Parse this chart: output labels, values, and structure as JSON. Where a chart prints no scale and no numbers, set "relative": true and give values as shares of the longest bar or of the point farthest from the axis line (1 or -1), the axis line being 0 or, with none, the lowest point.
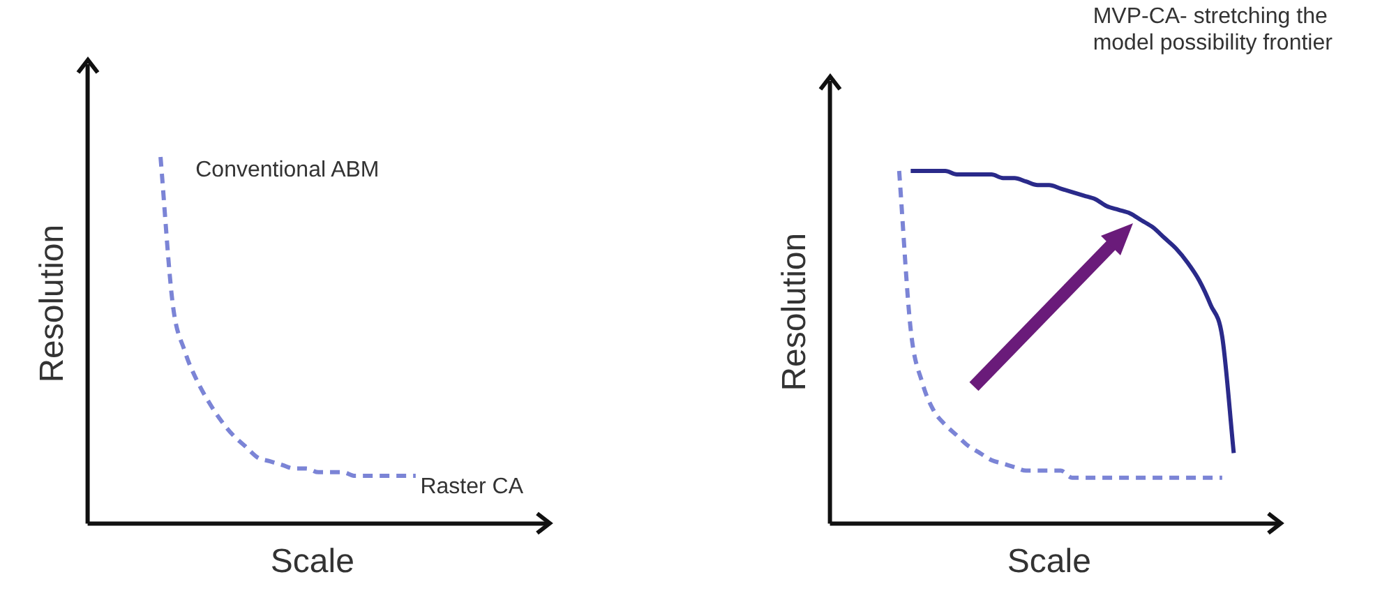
{
  "chart_data": [
    {
      "type": "line",
      "relative": true,
      "tick_labels": false,
      "marker": "none",
      "xlabel": "Scale",
      "ylabel": "Resolution",
      "categories": [
        null,
        null,
        null,
        null,
        null,
        null,
        null,
        null,
        null,
        null,
        null,
        null,
        null,
        null,
        null,
        null,
        null,
        null,
        null,
        null,
        null,
        null,
        null,
        null,
        null,
        null,
        null,
        null,
        null,
        null,
        null,
        null,
        null,
        null,
        null,
        null,
        null,
        null
      ],
      "series": [
        {
          "color": "#7b84d6",
          "line_style": "dashed",
          "values": [
            null,
            null,
            null,
            null,
            null,
            null,
            1.0,
            0.6,
            0.47,
            0.39,
            0.33,
            0.28,
            0.24,
            0.21,
            0.18,
            0.17,
            0.16,
            0.15,
            0.15,
            0.14,
            0.14,
            0.14,
            0.13,
            0.13,
            0.13,
            0.13,
            0.13,
            0.13,
            null,
            null,
            null,
            null,
            null,
            null,
            null,
            null,
            null,
            null
          ]
        }
      ],
      "annotations": [
        "Conventional ABM",
        "Raster CA"
      ]
    },
    {
      "type": "line",
      "relative": true,
      "tick_labels": false,
      "marker": "none",
      "xlabel": "Scale",
      "ylabel": "Resolution",
      "categories": [
        null,
        null,
        null,
        null,
        null,
        null,
        null,
        null,
        null,
        null,
        null,
        null,
        null,
        null,
        null,
        null,
        null,
        null,
        null,
        null,
        null,
        null,
        null,
        null,
        null,
        null,
        null,
        null,
        null,
        null,
        null,
        null,
        null,
        null,
        null,
        null,
        null,
        null,
        null
      ],
      "series": [
        {
          "color": "#7b84d6",
          "line_style": "dashed",
          "values": [
            null,
            null,
            null,
            null,
            null,
            null,
            1.0,
            0.55,
            0.4,
            0.32,
            0.28,
            0.25,
            0.22,
            0.2,
            0.18,
            0.17,
            0.16,
            0.15,
            0.15,
            0.15,
            0.15,
            0.13,
            0.13,
            0.13,
            0.13,
            0.13,
            0.13,
            0.13,
            0.13,
            0.13,
            0.13,
            0.13,
            0.13,
            0.13,
            0.13,
            null,
            null,
            null,
            null
          ]
        },
        {
          "color": "#2a2a8a",
          "line_style": "solid",
          "values": [
            null,
            null,
            null,
            null,
            null,
            null,
            null,
            1.0,
            1.0,
            1.0,
            1.0,
            0.99,
            0.99,
            0.99,
            0.99,
            0.98,
            0.98,
            0.97,
            0.96,
            0.96,
            0.95,
            0.94,
            0.93,
            0.92,
            0.9,
            0.89,
            0.88,
            0.86,
            0.84,
            0.81,
            0.78,
            0.74,
            0.69,
            0.62,
            0.53,
            0.2,
            null,
            null,
            null
          ]
        }
      ],
      "annotations": [
        "MVP-CA- stretching the model possibility frontier"
      ]
    }
  ]
}
